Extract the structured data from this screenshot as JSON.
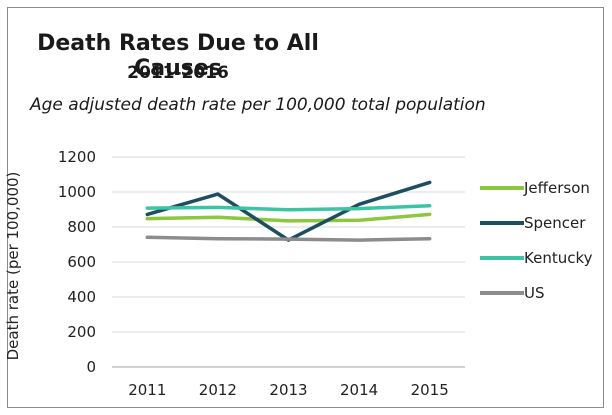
{
  "chart_data": {
    "type": "line",
    "title": "Death Rates Due to All Causes",
    "subtitle": "2011-2016",
    "caption": "Age adjusted death rate per 100,000 total population",
    "ylabel": "Death rate (per 100,000)",
    "xlabel": "",
    "categories": [
      "2011",
      "2012",
      "2013",
      "2014",
      "2015"
    ],
    "ylim": [
      0,
      1200
    ],
    "yticks": [
      0,
      200,
      400,
      600,
      800,
      1000,
      1200
    ],
    "grid": true,
    "legend_position": "right",
    "series": [
      {
        "name": "Jefferson",
        "color": "#8dc63f",
        "values": [
          848,
          856,
          835,
          838,
          872
        ]
      },
      {
        "name": "Spencer",
        "color": "#1d4e5f",
        "values": [
          872,
          988,
          725,
          930,
          1055
        ]
      },
      {
        "name": "Kentucky",
        "color": "#3cc4a4",
        "values": [
          908,
          912,
          898,
          905,
          922
        ]
      },
      {
        "name": "US",
        "color": "#8c8c8c",
        "values": [
          741,
          733,
          731,
          725,
          733
        ]
      }
    ]
  }
}
